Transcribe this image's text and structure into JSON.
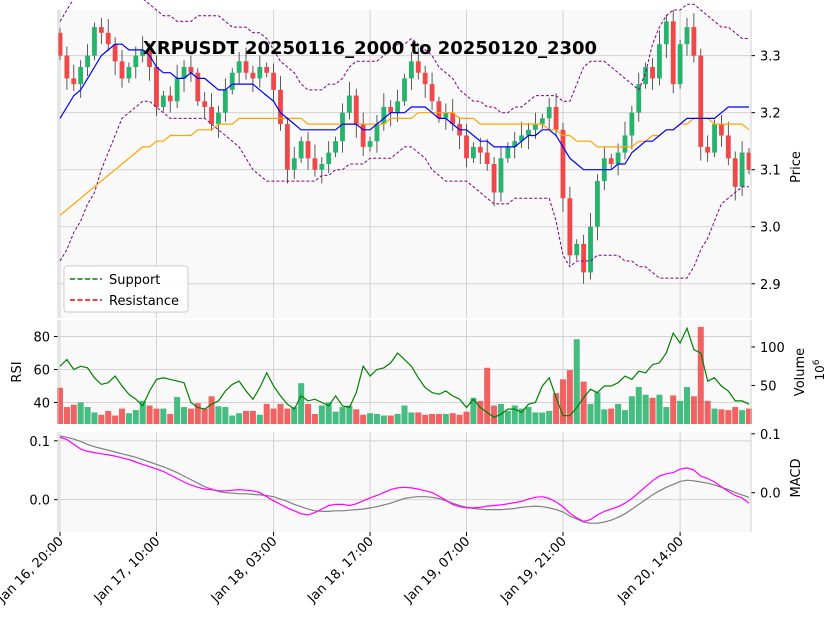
{
  "title": "XRPUSDT 20250116_2000 to 20250120_2300",
  "legend": [
    {
      "label": "Support",
      "color": "#008000"
    },
    {
      "label": "Resistance",
      "color": "#ff0000"
    }
  ],
  "colors": {
    "up": "#26b36c",
    "down": "#f04848",
    "bb_mid": "#0000ff",
    "ma_slow": "#ffa500",
    "bb_band": "#800080",
    "rsi": "#008000",
    "macd": "#ff00ff",
    "signal": "#808080"
  },
  "chart_data": {
    "type": "candlestick",
    "price": {
      "ylabel": "Price",
      "ylim": [
        2.84,
        3.38
      ],
      "yticks": [
        {
          "v": 2.9,
          "label": "2.9"
        },
        {
          "v": 3.0,
          "label": "3.0"
        },
        {
          "v": 3.1,
          "label": "3.1"
        },
        {
          "v": 3.2,
          "label": "3.2"
        },
        {
          "v": 3.3,
          "label": "3.3"
        }
      ],
      "close": [
        3.3,
        3.26,
        3.25,
        3.28,
        3.3,
        3.35,
        3.34,
        3.32,
        3.29,
        3.26,
        3.28,
        3.3,
        3.31,
        3.28,
        3.21,
        3.23,
        3.22,
        3.26,
        3.28,
        3.27,
        3.22,
        3.21,
        3.18,
        3.2,
        3.24,
        3.27,
        3.29,
        3.27,
        3.26,
        3.28,
        3.27,
        3.24,
        3.18,
        3.1,
        3.12,
        3.15,
        3.12,
        3.1,
        3.11,
        3.13,
        3.15,
        3.2,
        3.23,
        3.18,
        3.14,
        3.15,
        3.18,
        3.21,
        3.2,
        3.22,
        3.26,
        3.29,
        3.27,
        3.25,
        3.22,
        3.19,
        3.2,
        3.18,
        3.16,
        3.12,
        3.14,
        3.13,
        3.11,
        3.06,
        3.12,
        3.14,
        3.15,
        3.16,
        3.17,
        3.18,
        3.19,
        3.21,
        3.17,
        3.05,
        2.95,
        2.97,
        2.92,
        3.0,
        3.08,
        3.12,
        3.11,
        3.13,
        3.16,
        3.2,
        3.25,
        3.28,
        3.26,
        3.32,
        3.36,
        3.25,
        3.32,
        3.35,
        3.3,
        3.14,
        3.13,
        3.18,
        3.16,
        3.12,
        3.07,
        3.13,
        3.1
      ],
      "bb_mid": [
        3.19,
        3.21,
        3.23,
        3.24,
        3.26,
        3.28,
        3.3,
        3.31,
        3.32,
        3.32,
        3.31,
        3.31,
        3.31,
        3.3,
        3.28,
        3.27,
        3.27,
        3.26,
        3.26,
        3.27,
        3.26,
        3.26,
        3.25,
        3.24,
        3.24,
        3.25,
        3.25,
        3.25,
        3.25,
        3.24,
        3.23,
        3.22,
        3.2,
        3.19,
        3.18,
        3.17,
        3.17,
        3.17,
        3.17,
        3.17,
        3.17,
        3.18,
        3.18,
        3.18,
        3.17,
        3.17,
        3.18,
        3.19,
        3.2,
        3.2,
        3.2,
        3.21,
        3.21,
        3.21,
        3.2,
        3.19,
        3.19,
        3.18,
        3.17,
        3.17,
        3.16,
        3.15,
        3.15,
        3.14,
        3.14,
        3.14,
        3.14,
        3.15,
        3.16,
        3.16,
        3.17,
        3.17,
        3.16,
        3.14,
        3.12,
        3.11,
        3.1,
        3.1,
        3.1,
        3.1,
        3.1,
        3.11,
        3.11,
        3.13,
        3.14,
        3.15,
        3.15,
        3.16,
        3.17,
        3.17,
        3.18,
        3.19,
        3.19,
        3.19,
        3.19,
        3.19,
        3.2,
        3.21,
        3.21,
        3.21,
        3.21
      ],
      "bb_upper": [
        3.36,
        3.38,
        3.4,
        3.41,
        3.42,
        3.43,
        3.44,
        3.44,
        3.44,
        3.44,
        3.43,
        3.41,
        3.4,
        3.39,
        3.38,
        3.37,
        3.37,
        3.36,
        3.36,
        3.36,
        3.37,
        3.37,
        3.37,
        3.37,
        3.36,
        3.35,
        3.35,
        3.35,
        3.34,
        3.34,
        3.33,
        3.31,
        3.29,
        3.28,
        3.27,
        3.25,
        3.24,
        3.24,
        3.24,
        3.25,
        3.25,
        3.26,
        3.28,
        3.29,
        3.29,
        3.29,
        3.29,
        3.3,
        3.31,
        3.32,
        3.32,
        3.33,
        3.32,
        3.31,
        3.3,
        3.28,
        3.27,
        3.26,
        3.24,
        3.23,
        3.22,
        3.22,
        3.21,
        3.21,
        3.2,
        3.2,
        3.21,
        3.21,
        3.22,
        3.23,
        3.23,
        3.23,
        3.23,
        3.22,
        3.22,
        3.25,
        3.28,
        3.29,
        3.29,
        3.29,
        3.28,
        3.27,
        3.26,
        3.25,
        3.24,
        3.27,
        3.32,
        3.35,
        3.37,
        3.38,
        3.38,
        3.39,
        3.39,
        3.38,
        3.37,
        3.36,
        3.35,
        3.35,
        3.34,
        3.33,
        3.33
      ],
      "bb_lower": [
        2.94,
        2.96,
        2.99,
        3.01,
        3.04,
        3.06,
        3.1,
        3.13,
        3.16,
        3.19,
        3.2,
        3.21,
        3.22,
        3.22,
        3.21,
        3.2,
        3.19,
        3.19,
        3.19,
        3.19,
        3.19,
        3.19,
        3.18,
        3.17,
        3.16,
        3.15,
        3.14,
        3.12,
        3.1,
        3.09,
        3.08,
        3.08,
        3.08,
        3.08,
        3.08,
        3.08,
        3.08,
        3.08,
        3.09,
        3.09,
        3.1,
        3.1,
        3.11,
        3.11,
        3.11,
        3.12,
        3.12,
        3.12,
        3.12,
        3.13,
        3.14,
        3.14,
        3.13,
        3.12,
        3.1,
        3.09,
        3.08,
        3.08,
        3.08,
        3.08,
        3.07,
        3.06,
        3.05,
        3.04,
        3.04,
        3.04,
        3.05,
        3.05,
        3.05,
        3.05,
        3.05,
        3.05,
        3.01,
        2.95,
        2.93,
        2.94,
        2.94,
        2.94,
        2.95,
        2.95,
        2.95,
        2.95,
        2.94,
        2.94,
        2.93,
        2.93,
        2.92,
        2.91,
        2.91,
        2.91,
        2.91,
        2.91,
        2.93,
        2.96,
        2.98,
        3.01,
        3.04,
        3.05,
        3.06,
        3.07,
        3.07
      ],
      "ma_slow": [
        3.02,
        3.03,
        3.04,
        3.05,
        3.06,
        3.07,
        3.08,
        3.09,
        3.1,
        3.11,
        3.12,
        3.13,
        3.14,
        3.14,
        3.15,
        3.15,
        3.16,
        3.16,
        3.16,
        3.16,
        3.17,
        3.17,
        3.17,
        3.18,
        3.18,
        3.18,
        3.19,
        3.19,
        3.19,
        3.19,
        3.19,
        3.19,
        3.19,
        3.19,
        3.19,
        3.19,
        3.18,
        3.18,
        3.18,
        3.18,
        3.18,
        3.18,
        3.18,
        3.18,
        3.18,
        3.18,
        3.18,
        3.18,
        3.19,
        3.19,
        3.19,
        3.19,
        3.2,
        3.2,
        3.2,
        3.2,
        3.2,
        3.2,
        3.19,
        3.19,
        3.19,
        3.18,
        3.18,
        3.18,
        3.18,
        3.18,
        3.18,
        3.18,
        3.18,
        3.18,
        3.18,
        3.17,
        3.17,
        3.16,
        3.16,
        3.15,
        3.15,
        3.15,
        3.14,
        3.14,
        3.14,
        3.14,
        3.14,
        3.14,
        3.15,
        3.15,
        3.16,
        3.16,
        3.17,
        3.17,
        3.18,
        3.18,
        3.19,
        3.19,
        3.19,
        3.18,
        3.18,
        3.18,
        3.18,
        3.18,
        3.17
      ]
    },
    "volume": {
      "ylabel": "Volume",
      "exponent_label": "10",
      "exponent_sup": "6",
      "ylim": [
        0,
        135
      ],
      "yticks": [
        {
          "v": 50,
          "label": "50"
        },
        {
          "v": 100,
          "label": "100"
        }
      ],
      "values": [
        47,
        22,
        25,
        28,
        22,
        15,
        12,
        17,
        11,
        20,
        14,
        18,
        30,
        24,
        20,
        20,
        13,
        35,
        22,
        20,
        27,
        20,
        36,
        23,
        22,
        11,
        14,
        17,
        17,
        12,
        26,
        20,
        26,
        20,
        22,
        53,
        26,
        13,
        24,
        28,
        16,
        22,
        24,
        19,
        12,
        14,
        13,
        11,
        11,
        13,
        24,
        15,
        15,
        12,
        13,
        13,
        13,
        14,
        12,
        16,
        34,
        30,
        73,
        24,
        26,
        17,
        24,
        20,
        22,
        15,
        15,
        17,
        40,
        58,
        70,
        110,
        55,
        26,
        41,
        19,
        20,
        26,
        18,
        36,
        48,
        38,
        34,
        38,
        22,
        37,
        30,
        48,
        36,
        126,
        30,
        20,
        19,
        18,
        22,
        18,
        20
      ]
    },
    "rsi": {
      "ylabel": "RSI",
      "ylim": [
        27,
        90
      ],
      "yticks": [
        {
          "v": 40,
          "label": "40"
        },
        {
          "v": 60,
          "label": "60"
        },
        {
          "v": 80,
          "label": "80"
        }
      ],
      "values": [
        62,
        66,
        60,
        62,
        61,
        55,
        51,
        52,
        56,
        50,
        45,
        42,
        38,
        47,
        54,
        55,
        54,
        53,
        52,
        40,
        37,
        36,
        39,
        41,
        47,
        51,
        53,
        47,
        42,
        49,
        58,
        50,
        44,
        39,
        36,
        44,
        41,
        42,
        40,
        38,
        44,
        38,
        37,
        46,
        62,
        56,
        60,
        61,
        64,
        70,
        66,
        62,
        55,
        49,
        46,
        45,
        47,
        44,
        42,
        37,
        42,
        37,
        34,
        31,
        33,
        36,
        36,
        34,
        39,
        40,
        50,
        55,
        43,
        32,
        32,
        37,
        43,
        48,
        46,
        50,
        50,
        52,
        56,
        54,
        59,
        58,
        63,
        64,
        70,
        82,
        76,
        85,
        72,
        70,
        53,
        55,
        50,
        47,
        41,
        41,
        39
      ]
    },
    "macd": {
      "ylabel": "MACD",
      "ylim": [
        -0.055,
        0.115
      ],
      "left_yticks": [
        {
          "v": 0.0,
          "label": "0.0"
        },
        {
          "v": 0.1,
          "label": "0.1"
        }
      ],
      "right_yticks": [
        {
          "v": 0.0,
          "label": "0.0"
        },
        {
          "v": 0.1,
          "label": "0.1"
        }
      ],
      "macd": [
        0.106,
        0.102,
        0.094,
        0.086,
        0.082,
        0.08,
        0.078,
        0.076,
        0.074,
        0.071,
        0.068,
        0.064,
        0.06,
        0.056,
        0.052,
        0.048,
        0.042,
        0.036,
        0.03,
        0.025,
        0.021,
        0.018,
        0.017,
        0.015,
        0.015,
        0.016,
        0.017,
        0.016,
        0.015,
        0.012,
        0.005,
        -0.002,
        -0.008,
        -0.014,
        -0.019,
        -0.024,
        -0.026,
        -0.022,
        -0.016,
        -0.01,
        -0.008,
        -0.008,
        -0.01,
        -0.007,
        -0.002,
        0.003,
        0.007,
        0.012,
        0.017,
        0.02,
        0.021,
        0.02,
        0.018,
        0.015,
        0.012,
        0.006,
        -0.001,
        -0.008,
        -0.012,
        -0.014,
        -0.014,
        -0.013,
        -0.011,
        -0.01,
        -0.009,
        -0.007,
        -0.005,
        -0.003,
        0.001,
        0.004,
        0.005,
        0.002,
        -0.004,
        -0.012,
        -0.023,
        -0.031,
        -0.037,
        -0.034,
        -0.026,
        -0.02,
        -0.016,
        -0.012,
        -0.006,
        0.002,
        0.012,
        0.022,
        0.032,
        0.04,
        0.044,
        0.046,
        0.052,
        0.054,
        0.05,
        0.04,
        0.036,
        0.03,
        0.022,
        0.014,
        0.007,
        0.003,
        -0.006
      ],
      "signal": [
        0.108,
        0.106,
        0.103,
        0.099,
        0.094,
        0.09,
        0.087,
        0.084,
        0.081,
        0.078,
        0.075,
        0.072,
        0.068,
        0.064,
        0.06,
        0.056,
        0.051,
        0.046,
        0.04,
        0.034,
        0.028,
        0.022,
        0.018,
        0.014,
        0.012,
        0.011,
        0.01,
        0.01,
        0.009,
        0.008,
        0.007,
        0.005,
        0.001,
        -0.003,
        -0.008,
        -0.012,
        -0.016,
        -0.019,
        -0.02,
        -0.02,
        -0.019,
        -0.019,
        -0.018,
        -0.017,
        -0.016,
        -0.014,
        -0.012,
        -0.009,
        -0.006,
        -0.002,
        0.002,
        0.004,
        0.005,
        0.005,
        0.004,
        0.002,
        -0.002,
        -0.006,
        -0.01,
        -0.013,
        -0.015,
        -0.016,
        -0.017,
        -0.017,
        -0.017,
        -0.016,
        -0.015,
        -0.013,
        -0.012,
        -0.011,
        -0.012,
        -0.014,
        -0.017,
        -0.021,
        -0.028,
        -0.033,
        -0.038,
        -0.04,
        -0.04,
        -0.038,
        -0.035,
        -0.03,
        -0.024,
        -0.016,
        -0.008,
        0.0,
        0.008,
        0.015,
        0.021,
        0.026,
        0.031,
        0.033,
        0.032,
        0.03,
        0.028,
        0.025,
        0.021,
        0.017,
        0.012,
        0.008,
        0.004
      ]
    },
    "xticks": [
      {
        "i": 0,
        "label": "Jan 16, 20:00"
      },
      {
        "i": 14,
        "label": "Jan 17, 10:00"
      },
      {
        "i": 31,
        "label": "Jan 18, 03:00"
      },
      {
        "i": 45,
        "label": "Jan 18, 17:00"
      },
      {
        "i": 59,
        "label": "Jan 19, 07:00"
      },
      {
        "i": 73,
        "label": "Jan 19, 21:00"
      },
      {
        "i": 90,
        "label": "Jan 20, 14:00"
      }
    ]
  }
}
